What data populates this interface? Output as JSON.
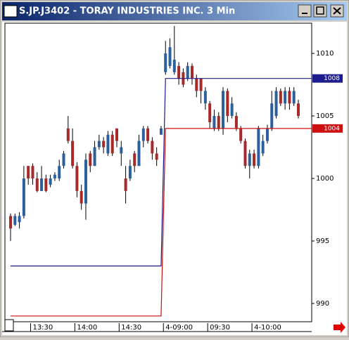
{
  "chart_data": {
    "type": "candlestick",
    "title": "S.JP.J3402 - TORAY INDUSTRIES INC. 3 Min",
    "categories": [
      null,
      null,
      null,
      null,
      null,
      "13:30",
      null,
      null,
      null,
      null,
      null,
      null,
      null,
      null,
      null,
      "14:00",
      null,
      null,
      null,
      null,
      null,
      null,
      null,
      null,
      null,
      "14:30",
      null,
      null,
      null,
      null,
      null,
      null,
      null,
      null,
      null,
      "4-09:00",
      null,
      null,
      null,
      null,
      null,
      null,
      null,
      null,
      null,
      "09:30",
      null,
      null,
      null,
      null,
      null,
      null,
      null,
      null,
      null,
      "4-10:00",
      null,
      null,
      null,
      null,
      null,
      null,
      null,
      null,
      null,
      null
    ],
    "open": [
      997,
      996.3,
      996.5,
      997,
      1001,
      1001,
      1000,
      999,
      1000,
      999.5,
      1000,
      1000,
      1001,
      1004,
      1003,
      1001,
      999,
      998,
      1002,
      1001,
      1002.5,
      1003,
      1002,
      1003.5,
      1004,
      1002,
      1000,
      1000,
      1002,
      1001,
      1003,
      1004,
      1003,
      1002,
      1003.5,
      1008.5,
      1009,
      1008.5,
      1009,
      1008.5,
      1008,
      1009,
      1008,
      1008,
      1006,
      1006,
      1004,
      1005,
      1004,
      1007,
      1005,
      1005,
      1004,
      1003,
      1001,
      1002,
      1001,
      1002,
      1003,
      1004,
      1005,
      1007,
      1006,
      1007,
      1006,
      1006
    ],
    "close": [
      996,
      997,
      997,
      1000,
      1000,
      1000,
      999,
      1000,
      999,
      1000,
      1000.3,
      1001,
      1002,
      1003,
      1001,
      999,
      998,
      1001.5,
      1001,
      1002.5,
      1003,
      1002.5,
      1003.5,
      1002,
      1003,
      1002.5,
      999,
      1001,
      1001,
      1003,
      1004,
      1003,
      1002,
      1001.5,
      1004,
      1010,
      1010.5,
      1009.5,
      1008,
      1007.5,
      1009,
      1008,
      1007,
      1007,
      1007,
      1004.5,
      1005,
      1004,
      1007,
      1005,
      1006,
      1004,
      1003,
      1001,
      1002,
      1001,
      1004,
      1003,
      1004,
      1006,
      1007,
      1006,
      1007,
      1006,
      1007,
      1005
    ],
    "high": [
      997.2,
      997.2,
      997.3,
      1001,
      1001,
      1001.2,
      1000.5,
      1001,
      1000.3,
      1000.3,
      1000.5,
      1001.5,
      1002.2,
      1005,
      1004,
      1001.3,
      999.5,
      1002,
      1002.2,
      1003,
      1003.5,
      1003.3,
      1003.8,
      1003.8,
      1004,
      1003,
      1001,
      1001.5,
      1002.2,
      1003.5,
      1004.2,
      1004.2,
      1003.3,
      1002.5,
      1004.2,
      1011,
      1011.2,
      1012.2,
      1009.3,
      1008.8,
      1009.3,
      1009.2,
      1008.3,
      1008,
      1007.3,
      1006.2,
      1005.5,
      1005.3,
      1007.3,
      1007.2,
      1006.5,
      1005.3,
      1004.2,
      1003.2,
      1002.3,
      1002.3,
      1004.2,
      1003.5,
      1004.3,
      1007,
      1007.3,
      1007.2,
      1007.3,
      1007.3,
      1007.3,
      1006.3
    ],
    "low": [
      995,
      996.2,
      996,
      996.8,
      999.5,
      999.5,
      998.9,
      999,
      998.9,
      999.3,
      999.8,
      999.8,
      1000.8,
      1002.8,
      1000.8,
      998.5,
      997.5,
      996.7,
      1000.5,
      1001,
      1002.3,
      1002,
      1001.8,
      1001.8,
      1002.5,
      1001,
      998,
      999.8,
      1000.5,
      1001,
      1002.5,
      1002.8,
      1001.5,
      1001,
      1003.5,
      1008.3,
      1008.8,
      1008.3,
      1007.5,
      1007.3,
      1007.8,
      1007.5,
      1006.5,
      1006,
      1005.5,
      1004,
      1003.8,
      1003.8,
      1003.5,
      1004.5,
      1004.8,
      1003.8,
      1002.8,
      1000.8,
      1000,
      1000.8,
      1000.8,
      1001.8,
      1002.8,
      1003.8,
      1004.8,
      1005.8,
      1005.5,
      1005.5,
      1005.8,
      1004.8
    ],
    "up_color": "#2b609c",
    "down_color": "#a62a2a",
    "lines": [
      {
        "color": "#1c1c8c",
        "values": [
          993,
          993,
          993,
          993,
          993,
          993,
          993,
          993,
          993,
          993,
          993,
          993,
          993,
          993,
          993,
          993,
          993,
          993,
          993,
          993,
          993,
          993,
          993,
          993,
          993,
          993,
          993,
          993,
          993,
          993,
          993,
          993,
          993,
          993,
          993,
          1008,
          1008,
          1008,
          1008,
          1008,
          1008,
          1008,
          1008,
          1008,
          1008,
          1008,
          1008,
          1008,
          1008,
          1008,
          1008,
          1008,
          1008,
          1008,
          1008,
          1008,
          1008,
          1008,
          1008,
          1008,
          1008,
          1008,
          1008,
          1008,
          1008,
          1008
        ]
      },
      {
        "color": "#cc1010",
        "values": [
          989,
          989,
          989,
          989,
          989,
          989,
          989,
          989,
          989,
          989,
          989,
          989,
          989,
          989,
          989,
          989,
          989,
          989,
          989,
          989,
          989,
          989,
          989,
          989,
          989,
          989,
          989,
          989,
          989,
          989,
          989,
          989,
          989,
          989,
          989,
          1004,
          1004,
          1004,
          1004,
          1004,
          1004,
          1004,
          1004,
          1004,
          1004,
          1004,
          1004,
          1004,
          1004,
          1004,
          1004,
          1004,
          1004,
          1004,
          1004,
          1004,
          1004,
          1004,
          1004,
          1004,
          1004,
          1004,
          1004,
          1004,
          1004,
          1004
        ]
      }
    ],
    "ylim": [
      988.54,
      1012.42
    ],
    "yticks": [
      990,
      995,
      1000,
      1005,
      1010
    ],
    "grid": false
  }
}
